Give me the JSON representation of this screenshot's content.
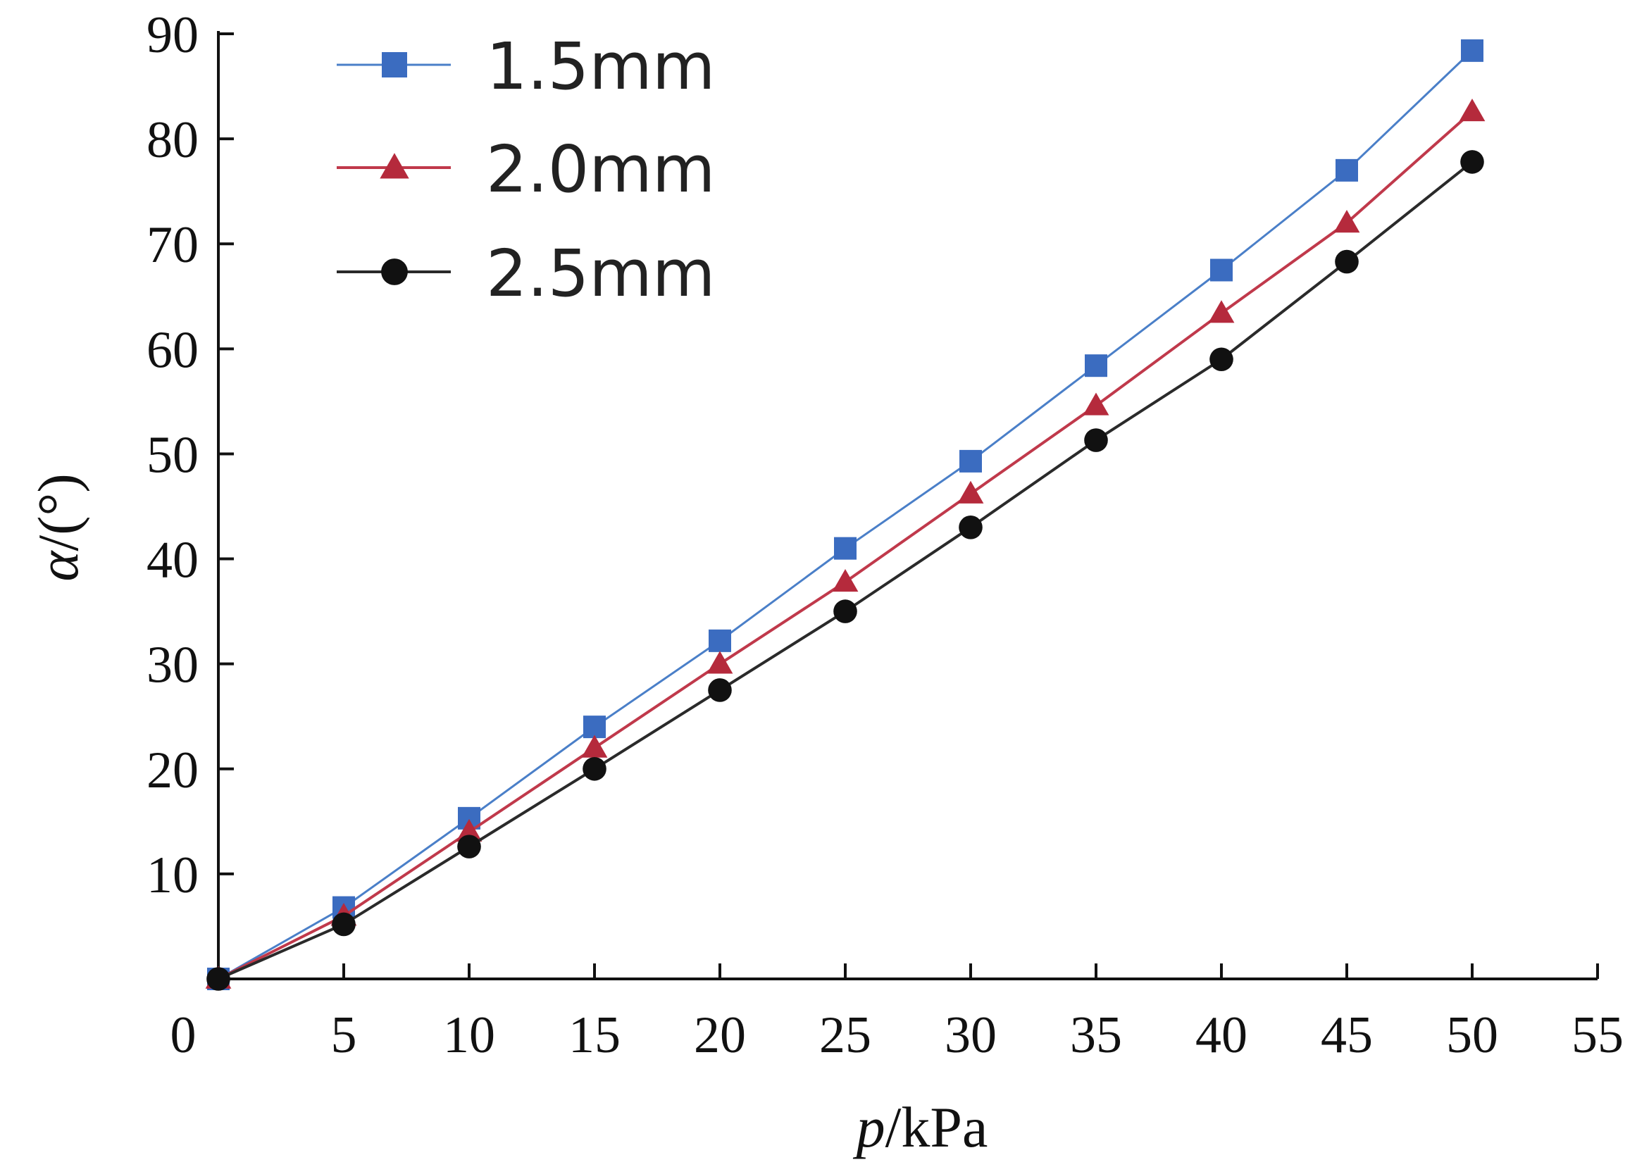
{
  "chart_data": {
    "type": "line",
    "title": "",
    "xlabel_var": "p",
    "xlabel_unit": "/kPa",
    "ylabel_var": "α",
    "ylabel_unit": "/(°)",
    "xlim": [
      0,
      55
    ],
    "ylim": [
      0,
      90
    ],
    "x_ticks": [
      0,
      5,
      10,
      15,
      20,
      25,
      30,
      35,
      40,
      45,
      50,
      55
    ],
    "y_ticks": [
      10,
      20,
      30,
      40,
      50,
      60,
      70,
      80,
      90
    ],
    "x_tick_labels": [
      "0",
      "5",
      "10",
      "15",
      "20",
      "25",
      "30",
      "35",
      "40",
      "45",
      "50",
      "55"
    ],
    "y_tick_labels": [
      "10",
      "20",
      "30",
      "40",
      "50",
      "60",
      "70",
      "80",
      "90"
    ],
    "grid": false,
    "legend_position": "top-left",
    "x": [
      0,
      5,
      10,
      15,
      20,
      25,
      30,
      35,
      40,
      45,
      50
    ],
    "series": [
      {
        "name": "1.5mm",
        "color": "#4a7fc8",
        "marker_color": "#3b6cc0",
        "marker": "square",
        "values": [
          0,
          6.8,
          15.3,
          24,
          32.2,
          41,
          49.3,
          58.4,
          67.5,
          77,
          88.4
        ]
      },
      {
        "name": "2.0mm",
        "color": "#c0394b",
        "marker_color": "#b52a3c",
        "marker": "triangle",
        "values": [
          0,
          6,
          14,
          22,
          30,
          37.8,
          46.2,
          54.6,
          63.4,
          72,
          82.6
        ]
      },
      {
        "name": "2.5mm",
        "color": "#2a2a2a",
        "marker_color": "#111111",
        "marker": "circle",
        "values": [
          0,
          5.2,
          12.6,
          20,
          27.5,
          35,
          43,
          51.3,
          59,
          68.3,
          77.8
        ]
      }
    ]
  }
}
